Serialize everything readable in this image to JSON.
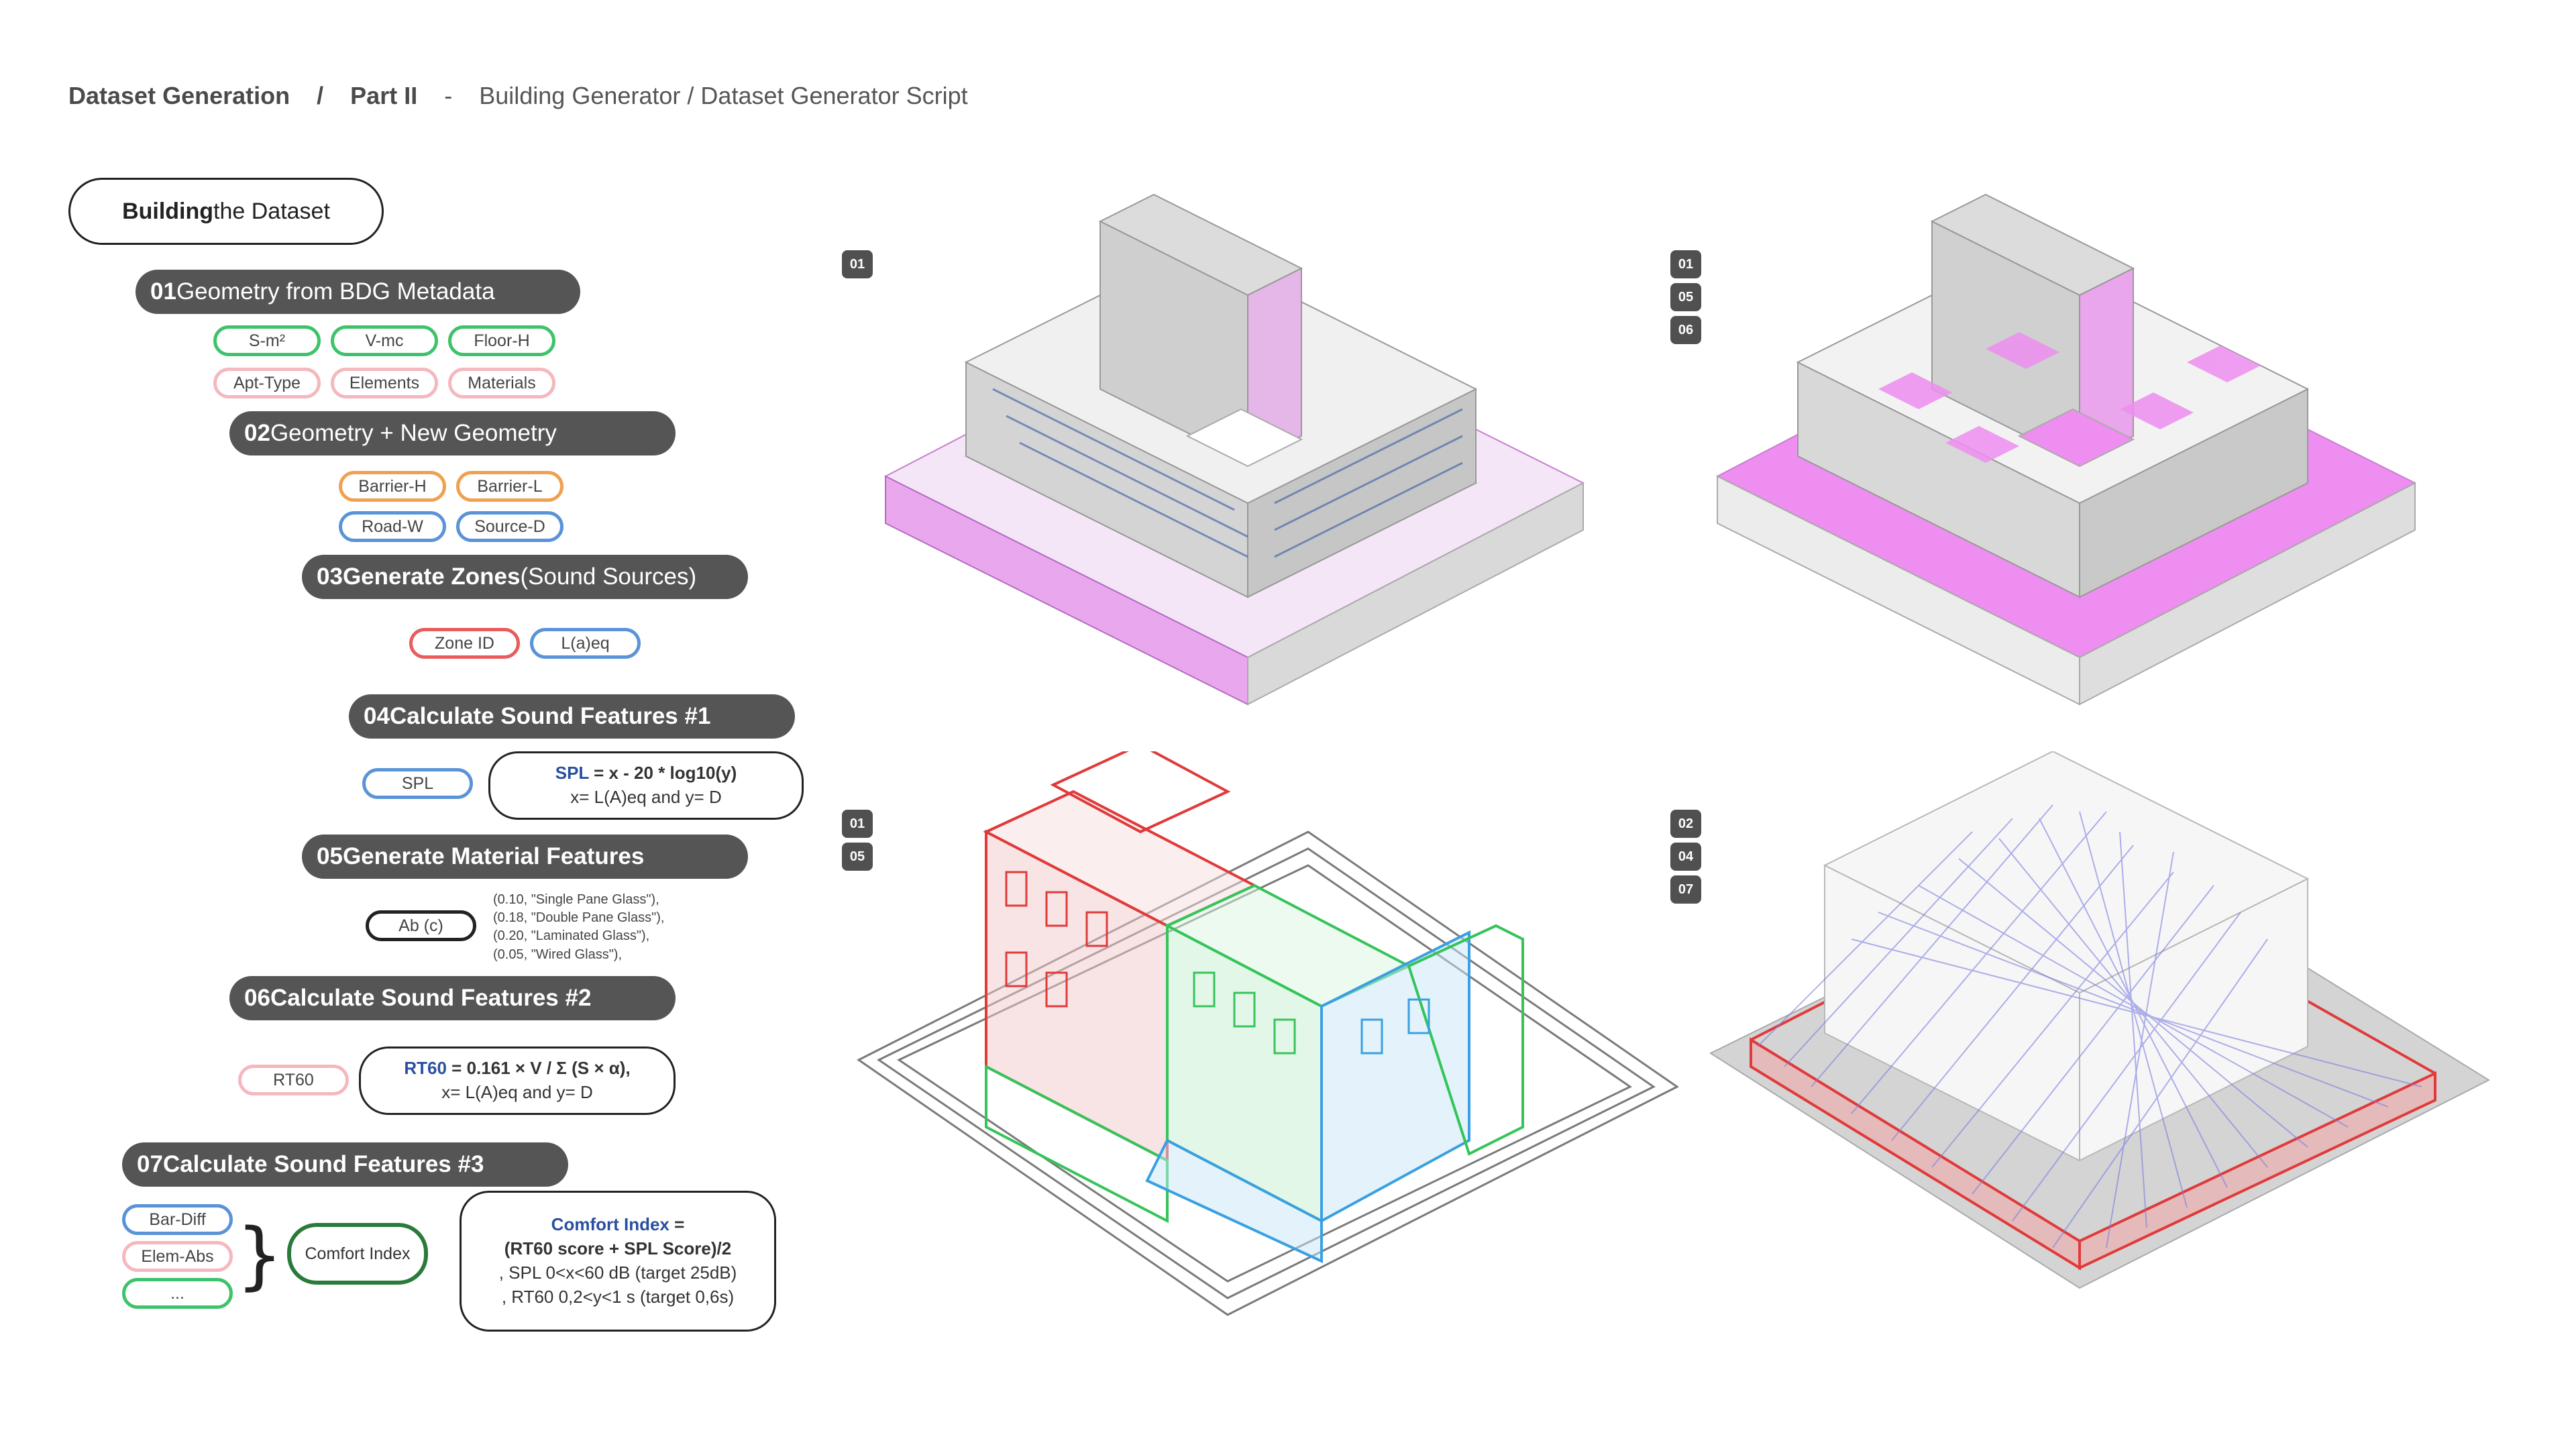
{
  "header": {
    "section": "Dataset Generation",
    "slash": "/",
    "part": "Part II",
    "dash": "-",
    "subtitle": "Building Generator / Dataset Generator Script"
  },
  "title_pill": {
    "bold": "Building",
    "rest": " the Dataset"
  },
  "steps": [
    {
      "num": "01",
      "label": " Geometry from BDG Metadata"
    },
    {
      "num": "02",
      "label": " Geometry + New Geometry"
    },
    {
      "num": "03",
      "bold": " Generate Zones",
      "rest": " (Sound Sources)"
    },
    {
      "num": "04",
      "label": " Calculate Sound Features #1"
    },
    {
      "num": "05",
      "label": " Generate Material Features"
    },
    {
      "num": "06",
      "label": " Calculate Sound Features #2"
    },
    {
      "num": "07",
      "label": " Calculate Sound Features #3"
    }
  ],
  "tags": {
    "s_m2": "S-m²",
    "v_mc": "V-mc",
    "floor_h": "Floor-H",
    "apt_type": "Apt-Type",
    "elements": "Elements",
    "materials": "Materials",
    "barrier_h": "Barrier-H",
    "barrier_l": "Barrier-L",
    "road_w": "Road-W",
    "source_d": "Source-D",
    "zone_id": "Zone ID",
    "laeq": "L(a)eq",
    "spl": "SPL",
    "ab": "Ab (c)",
    "rt60": "RT60",
    "bar_diff": "Bar-Diff",
    "elem_abs": "Elem-Abs",
    "more": "...",
    "comfort": "Comfort Index"
  },
  "formulas": {
    "spl_name": "SPL",
    "spl_eq": " = x - 20 * log10(y)",
    "spl_vars": "x= L(A)eq and y= D",
    "rt_name": "RT60",
    "rt_eq": " = 0.161 × V / Σ (S × α),",
    "rt_vars": "x= L(A)eq and y= D",
    "ci_name": "Comfort Index",
    "ci_eq": " =",
    "ci_line1": "(RT60 score + SPL Score)/2",
    "ci_line2": ", SPL 0<x<60 dB (target 25dB)",
    "ci_line3": ", RT60 0,2<y<1 s (target 0,6s)"
  },
  "materials": [
    "(0.10, \"Single Pane Glass\"),",
    "(0.18, \"Double Pane Glass\"),",
    "(0.20, \"Laminated Glass\"),",
    "(0.05, \"Wired Glass\"),"
  ],
  "badges": {
    "tl": [
      "01"
    ],
    "tr": [
      "01",
      "05",
      "06"
    ],
    "bl": [
      "01",
      "05"
    ],
    "br": [
      "02",
      "04",
      "07"
    ]
  },
  "colors": {
    "dark": "#555555",
    "magenta": "#e27ee6",
    "red": "#e03a3a",
    "green": "#35c45a",
    "cyan": "#3aa0e0",
    "ray": "#7b7fe0"
  }
}
